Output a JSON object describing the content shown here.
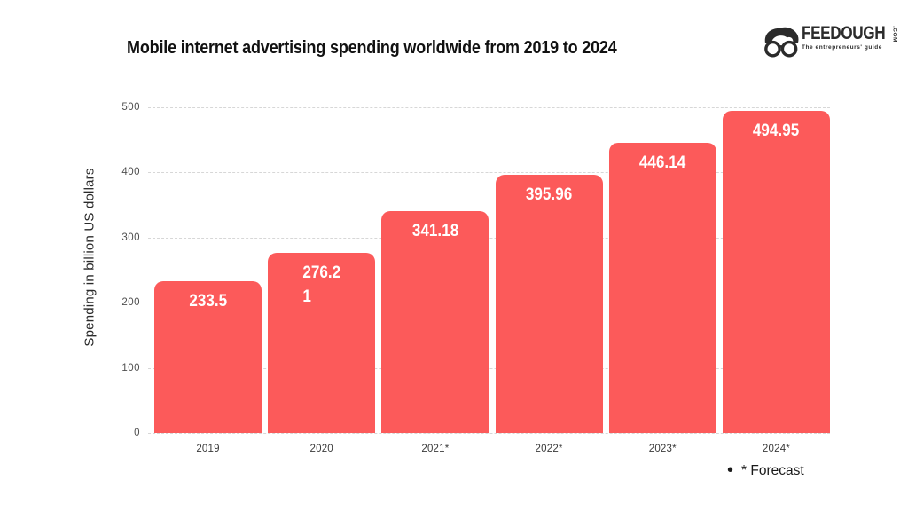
{
  "header": {
    "title": "Mobile internet advertising spending worldwide from 2019 to 2024"
  },
  "logo": {
    "brand": "FEEDOUGH",
    "tld": ".COM",
    "tagline": "The entrepreneurs' guide",
    "color": "#2b2b2b"
  },
  "chart_data": {
    "type": "bar",
    "title": "Mobile internet advertising spending worldwide from 2019 to 2024",
    "categories": [
      "2019",
      "2020",
      "2021*",
      "2022*",
      "2023*",
      "2024*"
    ],
    "values": [
      233.5,
      276.21,
      341.18,
      395.96,
      446.14,
      494.95
    ],
    "bar_labels": [
      "233.5",
      "276.2\n1",
      "341.18",
      "395.96",
      "446.14",
      "494.95"
    ],
    "xlabel": "",
    "ylabel": "Spending in billion US dollars",
    "ylim": [
      0,
      500
    ],
    "yticks": [
      0,
      100,
      200,
      300,
      400,
      500
    ],
    "grid": true,
    "legend": "none",
    "bar_color": "#fc5a5a",
    "bar_label_color": "#ffffff"
  },
  "footnote": {
    "bullet": "•",
    "text": "* Forecast"
  }
}
